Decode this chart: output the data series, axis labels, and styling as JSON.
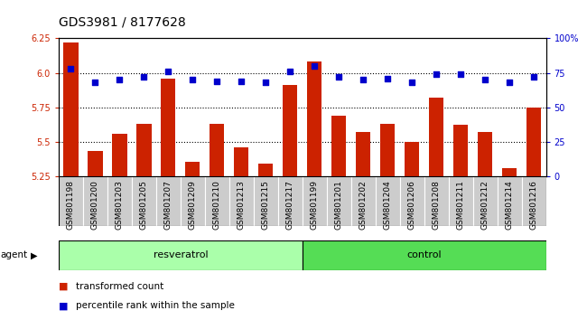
{
  "title": "GDS3981 / 8177628",
  "samples": [
    "GSM801198",
    "GSM801200",
    "GSM801203",
    "GSM801205",
    "GSM801207",
    "GSM801209",
    "GSM801210",
    "GSM801213",
    "GSM801215",
    "GSM801217",
    "GSM801199",
    "GSM801201",
    "GSM801202",
    "GSM801204",
    "GSM801206",
    "GSM801208",
    "GSM801211",
    "GSM801212",
    "GSM801214",
    "GSM801216"
  ],
  "bar_values": [
    6.22,
    5.43,
    5.56,
    5.63,
    5.96,
    5.35,
    5.63,
    5.46,
    5.34,
    5.91,
    6.08,
    5.69,
    5.57,
    5.63,
    5.5,
    5.82,
    5.62,
    5.57,
    5.31,
    5.75
  ],
  "percentile_values": [
    78,
    68,
    70,
    72,
    76,
    70,
    69,
    69,
    68,
    76,
    80,
    72,
    70,
    71,
    68,
    74,
    74,
    70,
    68,
    72
  ],
  "ylim_left": [
    5.25,
    6.25
  ],
  "ylim_right": [
    0,
    100
  ],
  "yticks_left": [
    5.25,
    5.5,
    5.75,
    6.0,
    6.25
  ],
  "yticks_right": [
    0,
    25,
    50,
    75,
    100
  ],
  "ytick_labels_right": [
    "0",
    "25",
    "50",
    "75",
    "100%"
  ],
  "hlines": [
    5.5,
    5.75,
    6.0
  ],
  "bar_color": "#cc2200",
  "dot_color": "#0000cc",
  "n_resveratrol": 10,
  "n_control": 10,
  "resveratrol_label": "resveratrol",
  "control_label": "control",
  "agent_label": "agent",
  "legend_bar_label": "transformed count",
  "legend_dot_label": "percentile rank within the sample",
  "resveratrol_bg": "#aaffaa",
  "control_bg": "#55dd55",
  "xtick_bg": "#cccccc",
  "title_fontsize": 10,
  "tick_fontsize": 7,
  "bar_width": 0.6
}
